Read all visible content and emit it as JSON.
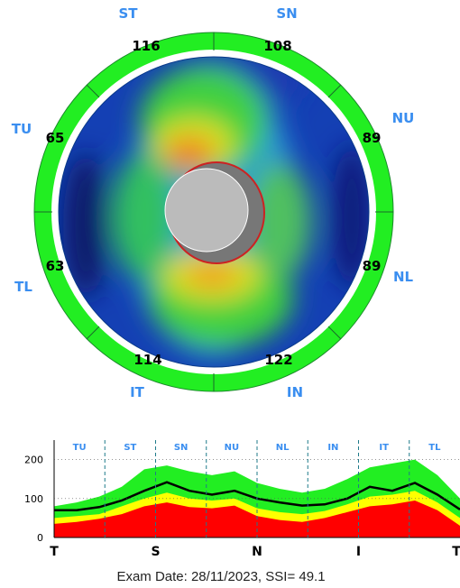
{
  "colors": {
    "ring_green": "#22ee22",
    "ring_yellow": "#ffff00",
    "label_blue": "#3a8ef0",
    "normal_band_green": "#22ee22",
    "borderline_yellow": "#ffff00",
    "abnormal_red": "#ff0000",
    "curve": "#000000"
  },
  "sector_labels": {
    "ST": "ST",
    "SN": "SN",
    "NU": "NU",
    "NL": "NL",
    "IN": "IN",
    "IT": "IT",
    "TL": "TL",
    "TU": "TU"
  },
  "sector_values": {
    "ST": "116",
    "SN": "108",
    "NU": "89",
    "NL": "89",
    "IN": "122",
    "IT": "114",
    "TL": "63",
    "TU": "65"
  },
  "chart_data": {
    "type": "area",
    "top_labels": [
      "TU",
      "ST",
      "SN",
      "NU",
      "NL",
      "IN",
      "IT",
      "TL"
    ],
    "x_ticks": [
      "T",
      "S",
      "N",
      "I",
      "T"
    ],
    "y_ticks": [
      "200",
      "100",
      "0"
    ],
    "ylim": [
      0,
      250
    ],
    "x": [
      0,
      20,
      40,
      60,
      80,
      100,
      120,
      140,
      160,
      180,
      200,
      220,
      240,
      260,
      280,
      300,
      320,
      340,
      360
    ],
    "series": [
      {
        "values": [
          70,
          70,
          78,
          95,
          120,
          142,
          120,
          110,
          120,
          100,
          90,
          82,
          85,
          100,
          130,
          120,
          140,
          110,
          72
        ]
      },
      {
        "values": [
          35,
          40,
          48,
          60,
          80,
          90,
          78,
          75,
          82,
          55,
          45,
          40,
          50,
          65,
          80,
          85,
          95,
          70,
          30
        ]
      },
      {
        "values": [
          50,
          55,
          60,
          80,
          100,
          115,
          100,
          95,
          100,
          75,
          65,
          60,
          68,
          85,
          105,
          110,
          120,
          90,
          50
        ]
      },
      {
        "values": [
          80,
          90,
          105,
          130,
          175,
          185,
          170,
          160,
          170,
          140,
          125,
          115,
          125,
          150,
          180,
          190,
          200,
          160,
          100
        ]
      }
    ]
  },
  "footer": {
    "exam_text": "Exam Date: 28/11/2023, SSI= 49.1"
  }
}
